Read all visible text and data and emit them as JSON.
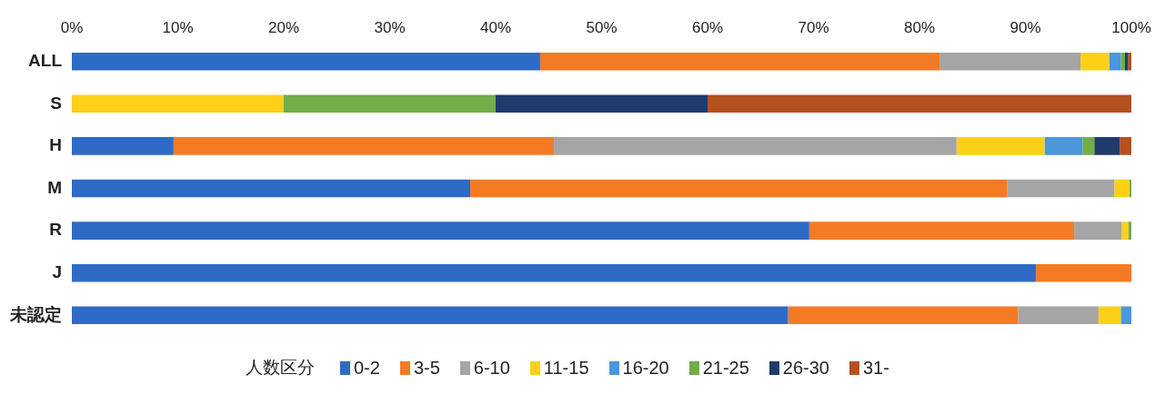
{
  "chart_data": {
    "type": "bar",
    "orientation": "horizontal",
    "stacked": true,
    "categories": [
      "ALL",
      "S",
      "H",
      "M",
      "R",
      "J",
      "未認定"
    ],
    "xlim": [
      0,
      100
    ],
    "xticks": [
      {
        "value": 0,
        "label": "0%"
      },
      {
        "value": 10,
        "label": "10%"
      },
      {
        "value": 20,
        "label": "20%"
      },
      {
        "value": 30,
        "label": "30%"
      },
      {
        "value": 40,
        "label": "40%"
      },
      {
        "value": 50,
        "label": "50%"
      },
      {
        "value": 60,
        "label": "60%"
      },
      {
        "value": 70,
        "label": "70%"
      },
      {
        "value": 80,
        "label": "80%"
      },
      {
        "value": 90,
        "label": "90%"
      },
      {
        "value": 100,
        "label": "100%"
      }
    ],
    "grid": false,
    "legend": "bottom",
    "legend_title": "人数区分",
    "series": [
      {
        "name": "0-2",
        "color": "#2e6bc6",
        "values": [
          44.2,
          0,
          9.6,
          37.6,
          69.6,
          91.0,
          67.6
        ]
      },
      {
        "name": "3-5",
        "color": "#f47b24",
        "values": [
          37.7,
          0,
          35.9,
          50.7,
          25.0,
          9.0,
          21.7
        ]
      },
      {
        "name": "6-10",
        "color": "#a5a5a5",
        "values": [
          13.3,
          0,
          38.0,
          10.1,
          4.5,
          0,
          7.6
        ]
      },
      {
        "name": "11-15",
        "color": "#fdd017",
        "values": [
          2.7,
          20,
          8.3,
          1.4,
          0.6,
          0,
          2.1
        ]
      },
      {
        "name": "16-20",
        "color": "#4a97db",
        "values": [
          1.1,
          0,
          3.6,
          0,
          0,
          0,
          1.0
        ]
      },
      {
        "name": "21-25",
        "color": "#72ad47",
        "values": [
          0.4,
          20,
          1.1,
          0.2,
          0.3,
          0,
          0
        ]
      },
      {
        "name": "26-30",
        "color": "#1f3b6e",
        "values": [
          0.3,
          20,
          2.4,
          0,
          0,
          0,
          0
        ]
      },
      {
        "name": "31-",
        "color": "#b5501f",
        "values": [
          0.3,
          40,
          1.1,
          0,
          0,
          0,
          0
        ]
      }
    ]
  }
}
